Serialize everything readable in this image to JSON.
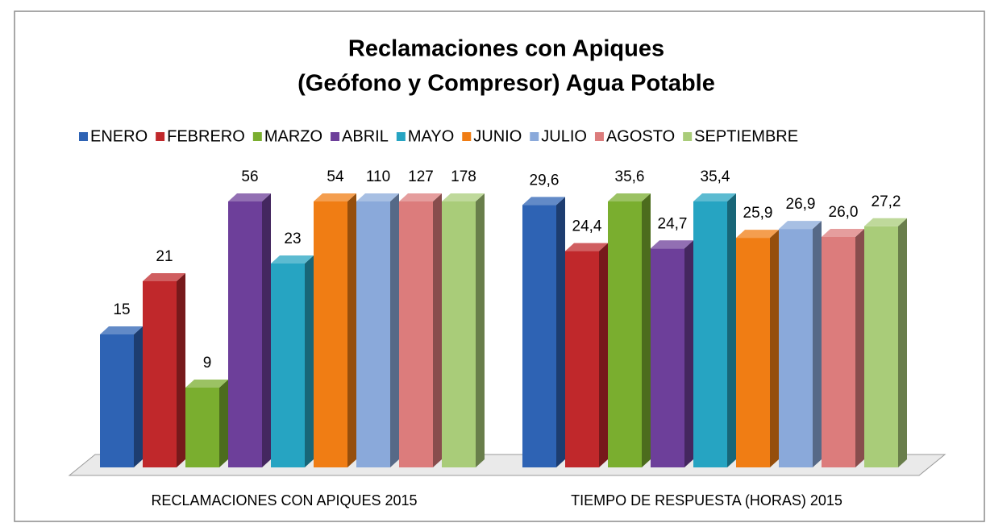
{
  "chart_data": {
    "type": "bar3d",
    "title": "Reclamaciones con Apiques",
    "subtitle": "(Geófono y Compresor) Agua Potable",
    "categories": [
      "RECLAMACIONES CON APIQUES 2015",
      "TIEMPO DE RESPUESTA (HORAS) 2015"
    ],
    "ylim": [
      0,
      30
    ],
    "series": [
      {
        "name": "ENERO",
        "color": "#2e63b4",
        "values": [
          15,
          29.6
        ],
        "value_labels": [
          "15",
          "29,6"
        ]
      },
      {
        "name": "FEBRERO",
        "color": "#c0282b",
        "values": [
          21,
          24.4
        ],
        "value_labels": [
          "21",
          "24,4"
        ]
      },
      {
        "name": "MARZO",
        "color": "#7aae2f",
        "values": [
          9,
          35.6
        ],
        "value_labels": [
          "9",
          "35,6"
        ]
      },
      {
        "name": "ABRIL",
        "color": "#6d3f9a",
        "values": [
          56,
          24.7
        ],
        "value_labels": [
          "56",
          "24,7"
        ]
      },
      {
        "name": "MAYO",
        "color": "#26a4c2",
        "values": [
          23,
          35.4
        ],
        "value_labels": [
          "23",
          "35,4"
        ]
      },
      {
        "name": "JUNIO",
        "color": "#f07d14",
        "values": [
          54,
          25.9
        ],
        "value_labels": [
          "54",
          "25,9"
        ]
      },
      {
        "name": "JULIO",
        "color": "#8aa9da",
        "values": [
          110,
          26.9
        ],
        "value_labels": [
          "110",
          "26,9"
        ]
      },
      {
        "name": "AGOSTO",
        "color": "#dc7c7c",
        "values": [
          127,
          26.0
        ],
        "value_labels": [
          "127",
          "26,0"
        ]
      },
      {
        "name": "SEPTIEMBRE",
        "color": "#a9cc79",
        "values": [
          178,
          27.2
        ],
        "value_labels": [
          "178",
          "27,2"
        ]
      }
    ]
  }
}
